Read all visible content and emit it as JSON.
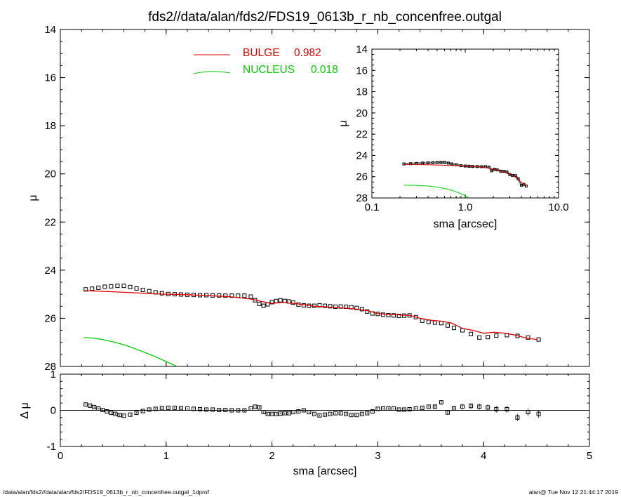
{
  "title": "fds2//data/alan/fds2/FDS19_0613b_r_nb_concenfree.outgal",
  "footer": {
    "left": "/data/alan/fds2//data/alan/fds2/FDS19_0613b_r_nb_concenfree.outgal_1dprof",
    "right": "alan@  Tue Nov 12 21:44:17 2019"
  },
  "colors": {
    "bulge": "#e00000",
    "nucleus": "#00cc00",
    "data": "#000000",
    "residual_zero": "#000000"
  },
  "legend": [
    {
      "label": "BULGE",
      "value": "0.982",
      "color": "#e00000"
    },
    {
      "label": "NUCLEUS",
      "value": "0.018",
      "color": "#00cc00"
    }
  ],
  "chart_data": [
    {
      "id": "main",
      "type": "scatter",
      "xlabel": "sma [arcsec]",
      "ylabel": "μ",
      "xlim": [
        0,
        5
      ],
      "ylim": [
        28,
        14
      ],
      "xticks": [
        "0",
        "1",
        "2",
        "3",
        "4",
        "5"
      ],
      "yticks": [
        "14",
        "16",
        "18",
        "20",
        "22",
        "24",
        "26",
        "28"
      ],
      "series": [
        {
          "name": "data",
          "style": "squares",
          "x": [
            0.24,
            0.3,
            0.36,
            0.42,
            0.48,
            0.54,
            0.6,
            0.66,
            0.72,
            0.78,
            0.84,
            0.9,
            0.96,
            1.02,
            1.08,
            1.14,
            1.2,
            1.26,
            1.32,
            1.38,
            1.44,
            1.5,
            1.56,
            1.62,
            1.68,
            1.74,
            1.8,
            1.84,
            1.88,
            1.92,
            1.96,
            2.0,
            2.04,
            2.08,
            2.12,
            2.16,
            2.2,
            2.25,
            2.3,
            2.35,
            2.4,
            2.45,
            2.5,
            2.55,
            2.6,
            2.65,
            2.7,
            2.75,
            2.8,
            2.85,
            2.9,
            2.95,
            3.0,
            3.05,
            3.1,
            3.15,
            3.2,
            3.25,
            3.3,
            3.36,
            3.42,
            3.48,
            3.54,
            3.6,
            3.66,
            3.72,
            3.8,
            3.88,
            3.96,
            4.04,
            4.12,
            4.22,
            4.32,
            4.42,
            4.52
          ],
          "y": [
            24.8,
            24.77,
            24.73,
            24.69,
            24.67,
            24.65,
            24.65,
            24.7,
            24.76,
            24.82,
            24.87,
            24.92,
            24.96,
            24.99,
            25.0,
            25.01,
            25.02,
            25.03,
            25.04,
            25.04,
            25.05,
            25.05,
            25.06,
            25.06,
            25.06,
            25.06,
            25.1,
            25.25,
            25.4,
            25.48,
            25.42,
            25.33,
            25.28,
            25.25,
            25.28,
            25.3,
            25.35,
            25.43,
            25.46,
            25.48,
            25.48,
            25.46,
            25.48,
            25.5,
            25.52,
            25.51,
            25.52,
            25.54,
            25.57,
            25.62,
            25.72,
            25.8,
            25.82,
            25.85,
            25.87,
            25.88,
            25.9,
            25.89,
            25.88,
            25.95,
            26.1,
            26.15,
            26.18,
            26.2,
            26.3,
            26.4,
            26.5,
            26.65,
            26.8,
            26.78,
            26.72,
            26.7,
            26.73,
            26.8,
            26.88
          ]
        },
        {
          "name": "BULGE",
          "style": "line",
          "x": [
            0.22,
            0.4,
            0.6,
            0.8,
            1.0,
            1.2,
            1.4,
            1.6,
            1.8,
            1.9,
            2.0,
            2.1,
            2.2,
            2.3,
            2.4,
            2.5,
            2.6,
            2.7,
            2.8,
            2.9,
            3.0,
            3.1,
            3.2,
            3.3,
            3.4,
            3.5,
            3.6,
            3.7,
            3.8,
            3.9,
            4.0,
            4.1,
            4.2,
            4.3,
            4.4,
            4.5
          ],
          "y": [
            24.85,
            24.88,
            24.92,
            24.96,
            25.0,
            25.02,
            25.06,
            25.1,
            25.2,
            25.3,
            25.38,
            25.34,
            25.38,
            25.43,
            25.5,
            25.52,
            25.55,
            25.58,
            25.62,
            25.68,
            25.8,
            25.84,
            25.86,
            25.88,
            26.0,
            26.08,
            26.12,
            26.2,
            26.42,
            26.5,
            26.62,
            26.58,
            26.62,
            26.7,
            26.82,
            26.88
          ]
        },
        {
          "name": "NUCLEUS",
          "style": "line",
          "x": [
            0.22,
            0.3,
            0.4,
            0.5,
            0.6,
            0.7,
            0.8,
            0.9,
            1.0,
            1.1
          ],
          "y": [
            26.8,
            26.82,
            26.88,
            26.98,
            27.1,
            27.25,
            27.42,
            27.6,
            27.8,
            28.0
          ]
        }
      ]
    },
    {
      "id": "inset",
      "type": "line",
      "xscale": "log",
      "xlabel": "sma [arcsec]",
      "ylabel": "μ",
      "xlim": [
        0.1,
        10.0
      ],
      "ylim": [
        28,
        14
      ],
      "xticks": [
        "0.1",
        "1.0",
        "10.0"
      ],
      "yticks": [
        "14",
        "16",
        "18",
        "20",
        "22",
        "24",
        "26",
        "28"
      ],
      "series": [
        {
          "name": "data",
          "style": "squares",
          "x": [
            0.22,
            0.26,
            0.3,
            0.35,
            0.4,
            0.45,
            0.5,
            0.55,
            0.6,
            0.66,
            0.72,
            0.8,
            0.9,
            1.0,
            1.1,
            1.2,
            1.35,
            1.5,
            1.65,
            1.8,
            1.92,
            2.05,
            2.2,
            2.4,
            2.6,
            2.8,
            3.0,
            3.2,
            3.45,
            3.7,
            4.0,
            4.25,
            4.5
          ],
          "y": [
            24.8,
            24.78,
            24.75,
            24.72,
            24.7,
            24.68,
            24.66,
            24.65,
            24.65,
            24.72,
            24.8,
            24.87,
            24.96,
            25.0,
            25.02,
            25.04,
            25.05,
            25.06,
            25.06,
            25.1,
            25.45,
            25.3,
            25.35,
            25.48,
            25.5,
            25.55,
            25.8,
            25.88,
            25.9,
            26.2,
            26.8,
            26.72,
            26.88
          ]
        },
        {
          "name": "BULGE",
          "style": "line",
          "x": [
            0.22,
            0.4,
            0.6,
            0.8,
            1.0,
            1.4,
            1.8,
            2.2,
            2.6,
            3.0,
            3.4,
            3.8,
            4.2,
            4.5
          ],
          "y": [
            24.85,
            24.88,
            24.92,
            24.96,
            25.0,
            25.06,
            25.2,
            25.38,
            25.55,
            25.8,
            26.0,
            26.42,
            26.62,
            26.88
          ]
        },
        {
          "name": "NUCLEUS",
          "style": "line",
          "x": [
            0.22,
            0.3,
            0.4,
            0.5,
            0.6,
            0.7,
            0.8,
            0.9,
            1.0,
            1.1
          ],
          "y": [
            26.8,
            26.82,
            26.88,
            26.98,
            27.1,
            27.25,
            27.42,
            27.6,
            27.8,
            28.0
          ]
        }
      ]
    },
    {
      "id": "residual",
      "type": "scatter",
      "xlabel": "sma [arcsec]",
      "ylabel": "Δ μ",
      "xlim": [
        0,
        5
      ],
      "ylim": [
        -1,
        1
      ],
      "xticks": [
        "0",
        "1",
        "2",
        "3",
        "4",
        "5"
      ],
      "yticks": [
        "-1",
        "0",
        "1"
      ],
      "series": [
        {
          "name": "residual",
          "style": "squares",
          "x": [
            0.24,
            0.28,
            0.32,
            0.36,
            0.4,
            0.44,
            0.48,
            0.52,
            0.56,
            0.6,
            0.66,
            0.72,
            0.78,
            0.84,
            0.9,
            0.96,
            1.02,
            1.08,
            1.14,
            1.2,
            1.26,
            1.32,
            1.38,
            1.44,
            1.5,
            1.56,
            1.62,
            1.68,
            1.74,
            1.8,
            1.84,
            1.88,
            1.92,
            1.96,
            2.0,
            2.04,
            2.08,
            2.12,
            2.16,
            2.2,
            2.25,
            2.3,
            2.35,
            2.4,
            2.45,
            2.5,
            2.55,
            2.6,
            2.65,
            2.7,
            2.75,
            2.8,
            2.85,
            2.9,
            2.95,
            3.0,
            3.05,
            3.1,
            3.15,
            3.2,
            3.25,
            3.3,
            3.36,
            3.42,
            3.48,
            3.54,
            3.6,
            3.66,
            3.72,
            3.8,
            3.88,
            3.96,
            4.04,
            4.12,
            4.22,
            4.32,
            4.42,
            4.52
          ],
          "y": [
            0.16,
            0.13,
            0.09,
            0.05,
            0.01,
            -0.03,
            -0.07,
            -0.1,
            -0.13,
            -0.15,
            -0.12,
            -0.07,
            -0.02,
            0.02,
            0.04,
            0.06,
            0.07,
            0.07,
            0.06,
            0.05,
            0.04,
            0.03,
            0.02,
            0.02,
            0.01,
            0.01,
            0.0,
            0.0,
            0.0,
            0.05,
            0.1,
            0.08,
            -0.05,
            -0.1,
            -0.1,
            -0.1,
            -0.09,
            -0.08,
            -0.08,
            -0.05,
            -0.03,
            0.0,
            -0.05,
            -0.1,
            -0.14,
            -0.12,
            -0.1,
            -0.08,
            -0.08,
            -0.1,
            -0.13,
            -0.13,
            -0.1,
            -0.08,
            -0.03,
            0.04,
            0.05,
            0.05,
            0.05,
            0.02,
            0.02,
            0.03,
            0.05,
            0.07,
            0.1,
            0.1,
            0.22,
            -0.06,
            0.05,
            0.1,
            0.12,
            0.1,
            0.08,
            0.03,
            0.03,
            -0.2,
            -0.05,
            -0.1
          ]
        }
      ]
    }
  ]
}
